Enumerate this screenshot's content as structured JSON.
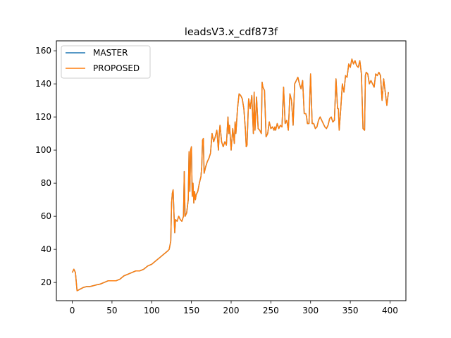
{
  "chart_data": {
    "type": "line",
    "title": "leadsV3.x_cdf873f",
    "xlabel": "",
    "ylabel": "",
    "xlim": [
      -20,
      420
    ],
    "ylim": [
      9,
      166
    ],
    "x_ticks": [
      0,
      50,
      100,
      150,
      200,
      250,
      300,
      350,
      400
    ],
    "y_ticks": [
      20,
      40,
      60,
      80,
      100,
      120,
      140,
      160
    ],
    "grid": false,
    "legend": "top-left",
    "x": [
      0,
      2,
      4,
      6,
      10,
      14,
      18,
      22,
      26,
      30,
      35,
      40,
      45,
      50,
      55,
      60,
      65,
      70,
      75,
      80,
      85,
      90,
      95,
      100,
      105,
      110,
      115,
      120,
      122,
      124,
      125,
      126,
      127,
      128,
      129,
      130,
      132,
      134,
      136,
      138,
      140,
      141,
      142,
      144,
      146,
      147,
      148,
      149,
      150,
      151,
      152,
      153,
      154,
      155,
      156,
      158,
      160,
      162,
      163,
      164,
      165,
      166,
      168,
      170,
      172,
      174,
      176,
      178,
      180,
      182,
      184,
      185,
      186,
      188,
      190,
      192,
      194,
      196,
      197,
      198,
      200,
      202,
      204,
      205,
      206,
      208,
      210,
      212,
      214,
      216,
      218,
      219,
      220,
      222,
      224,
      226,
      228,
      229,
      230,
      232,
      234,
      236,
      238,
      239,
      240,
      242,
      244,
      246,
      248,
      250,
      252,
      254,
      255,
      256,
      258,
      260,
      262,
      264,
      266,
      268,
      270,
      272,
      274,
      276,
      278,
      280,
      282,
      284,
      286,
      288,
      290,
      292,
      294,
      295,
      296,
      298,
      300,
      302,
      304,
      306,
      308,
      310,
      312,
      314,
      316,
      318,
      320,
      322,
      324,
      326,
      328,
      330,
      332,
      334,
      335,
      336,
      338,
      340,
      342,
      344,
      346,
      348,
      350,
      352,
      354,
      356,
      358,
      360,
      362,
      364,
      366,
      368,
      369,
      370,
      372,
      374,
      376,
      378,
      380,
      382,
      384,
      386,
      388,
      390,
      392,
      394,
      396,
      398
    ],
    "series": [
      {
        "name": "MASTER",
        "color": "#1f77b4",
        "values": [
          26,
          28,
          26,
          15,
          16,
          17,
          17.5,
          17.5,
          18,
          18.5,
          19,
          20,
          21,
          21,
          21,
          22,
          24,
          25,
          26,
          27,
          27,
          28,
          30,
          31,
          33,
          35,
          37,
          39,
          40,
          45,
          68,
          74,
          76,
          62,
          50,
          58,
          57,
          60,
          58,
          57,
          60,
          87,
          60,
          62,
          70,
          99,
          75,
          100,
          102,
          72,
          80,
          68,
          75,
          70,
          73,
          75,
          80,
          84,
          90,
          106,
          107,
          86,
          90,
          93,
          95,
          98,
          110,
          105,
          108,
          112,
          100,
          110,
          115,
          105,
          102,
          105,
          103,
          120,
          110,
          115,
          100,
          113,
          104,
          117,
          110,
          125,
          134,
          133,
          131,
          125,
          112,
          102,
          103,
          131,
          125,
          133,
          110,
          135,
          112,
          132,
          113,
          112,
          110,
          141,
          138,
          136,
          108,
          110,
          117,
          113,
          114,
          112,
          114,
          112,
          116,
          113,
          115,
          114,
          138,
          116,
          118,
          112,
          134,
          130,
          115,
          140,
          142,
          144,
          140,
          137,
          142,
          122,
          122,
          120,
          116,
          116,
          146,
          116,
          116,
          113,
          114,
          118,
          120,
          118,
          116,
          114,
          113,
          115,
          119,
          120,
          117,
          118,
          143,
          125,
          125,
          112,
          125,
          140,
          135,
          145,
          144,
          152,
          150,
          155,
          152,
          154,
          151,
          150,
          154,
          146,
          113,
          112,
          145,
          147,
          146,
          140,
          142,
          140,
          138,
          146,
          145,
          147,
          145,
          130,
          143,
          135,
          127,
          135
        ]
      },
      {
        "name": "PROPOSED",
        "color": "#ff7f0e",
        "values": [
          26,
          28,
          26,
          15,
          16,
          17,
          17.5,
          17.5,
          18,
          18.5,
          19,
          20,
          21,
          21,
          21,
          22,
          24,
          25,
          26,
          27,
          27,
          28,
          30,
          31,
          33,
          35,
          37,
          39,
          40,
          45,
          68,
          74,
          76,
          62,
          50,
          58,
          57,
          60,
          58,
          57,
          60,
          87,
          60,
          62,
          70,
          99,
          75,
          100,
          102,
          72,
          80,
          68,
          75,
          70,
          73,
          75,
          80,
          84,
          90,
          106,
          107,
          86,
          90,
          93,
          95,
          98,
          110,
          105,
          108,
          112,
          100,
          110,
          115,
          105,
          102,
          105,
          103,
          120,
          110,
          115,
          100,
          113,
          104,
          117,
          110,
          125,
          134,
          133,
          131,
          125,
          112,
          102,
          103,
          131,
          125,
          133,
          110,
          135,
          112,
          132,
          113,
          112,
          110,
          141,
          138,
          136,
          108,
          110,
          117,
          113,
          114,
          112,
          114,
          112,
          116,
          113,
          115,
          114,
          138,
          116,
          118,
          112,
          134,
          130,
          115,
          140,
          142,
          144,
          140,
          137,
          142,
          122,
          122,
          120,
          116,
          116,
          146,
          116,
          116,
          113,
          114,
          118,
          120,
          118,
          116,
          114,
          113,
          115,
          119,
          120,
          117,
          118,
          143,
          125,
          125,
          112,
          125,
          140,
          135,
          145,
          144,
          152,
          150,
          155,
          152,
          154,
          151,
          150,
          154,
          146,
          113,
          112,
          145,
          147,
          146,
          140,
          142,
          140,
          138,
          146,
          145,
          147,
          145,
          130,
          143,
          135,
          127,
          135
        ]
      }
    ]
  }
}
